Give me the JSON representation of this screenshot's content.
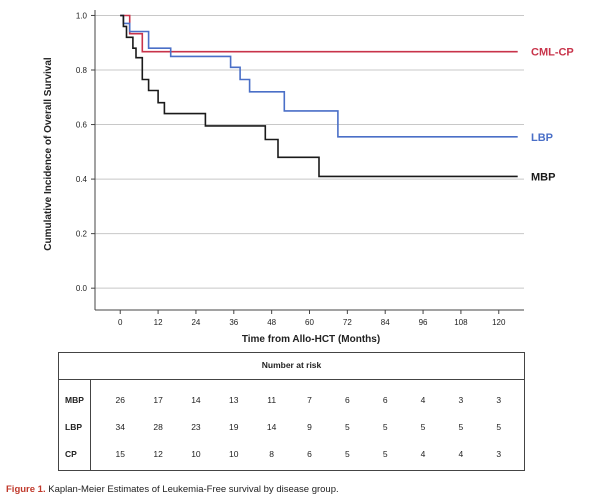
{
  "chart_data": {
    "type": "line",
    "title": "",
    "xlabel": "Time from Allo-HCT (Months)",
    "ylabel": "Cumulative Incidence of Overall Survival",
    "xlim": [
      -8,
      128
    ],
    "ylim": [
      -0.08,
      1.02
    ],
    "x_ticks": [
      "0",
      "12",
      "24",
      "36",
      "48",
      "60",
      "72",
      "84",
      "96",
      "108",
      "120"
    ],
    "y_ticks": [
      "0.0",
      "0.2",
      "0.4",
      "0.6",
      "0.8",
      "1.0"
    ],
    "grid": "horizontal",
    "step": true,
    "series": [
      {
        "name": "CML-CP",
        "color": "#c8334a",
        "points": [
          [
            0,
            1.0
          ],
          [
            3,
            1.0
          ],
          [
            3,
            0.933
          ],
          [
            7,
            0.933
          ],
          [
            7,
            0.867
          ],
          [
            126,
            0.867
          ]
        ]
      },
      {
        "name": "LBP",
        "color": "#4a6fc7",
        "points": [
          [
            0,
            1.0
          ],
          [
            1,
            1.0
          ],
          [
            1,
            0.971
          ],
          [
            3,
            0.971
          ],
          [
            3,
            0.941
          ],
          [
            9,
            0.941
          ],
          [
            9,
            0.88
          ],
          [
            16,
            0.88
          ],
          [
            16,
            0.85
          ],
          [
            35,
            0.85
          ],
          [
            35,
            0.81
          ],
          [
            38,
            0.81
          ],
          [
            38,
            0.765
          ],
          [
            41,
            0.765
          ],
          [
            41,
            0.72
          ],
          [
            52,
            0.72
          ],
          [
            52,
            0.65
          ],
          [
            69,
            0.65
          ],
          [
            69,
            0.555
          ],
          [
            126,
            0.555
          ]
        ]
      },
      {
        "name": "MBP",
        "color": "#1a1a1a",
        "points": [
          [
            0,
            1.0
          ],
          [
            1,
            1.0
          ],
          [
            1,
            0.96
          ],
          [
            2,
            0.96
          ],
          [
            2,
            0.92
          ],
          [
            4,
            0.92
          ],
          [
            4,
            0.88
          ],
          [
            5,
            0.88
          ],
          [
            5,
            0.845
          ],
          [
            7,
            0.845
          ],
          [
            7,
            0.765
          ],
          [
            9,
            0.765
          ],
          [
            9,
            0.725
          ],
          [
            12,
            0.725
          ],
          [
            12,
            0.68
          ],
          [
            14,
            0.68
          ],
          [
            14,
            0.64
          ],
          [
            27,
            0.64
          ],
          [
            27,
            0.595
          ],
          [
            46,
            0.595
          ],
          [
            46,
            0.545
          ],
          [
            50,
            0.545
          ],
          [
            50,
            0.48
          ],
          [
            63,
            0.48
          ],
          [
            63,
            0.41
          ],
          [
            126,
            0.41
          ]
        ]
      }
    ],
    "legend_placement": "right, end of each curve"
  },
  "risk_table": {
    "title": "Number at risk",
    "rows": [
      {
        "label": "MBP",
        "values": [
          "26",
          "17",
          "14",
          "13",
          "11",
          "7",
          "6",
          "6",
          "4",
          "3",
          "3"
        ]
      },
      {
        "label": "LBP",
        "values": [
          "34",
          "28",
          "23",
          "19",
          "14",
          "9",
          "5",
          "5",
          "5",
          "5",
          "5"
        ]
      },
      {
        "label": "CP",
        "values": [
          "15",
          "12",
          "10",
          "10",
          "8",
          "6",
          "5",
          "5",
          "4",
          "4",
          "3"
        ]
      }
    ]
  },
  "caption": {
    "figure_label": "Figure 1.",
    "text": " Kaplan-Meier Estimates of Leukemia-Free survival by disease group."
  }
}
